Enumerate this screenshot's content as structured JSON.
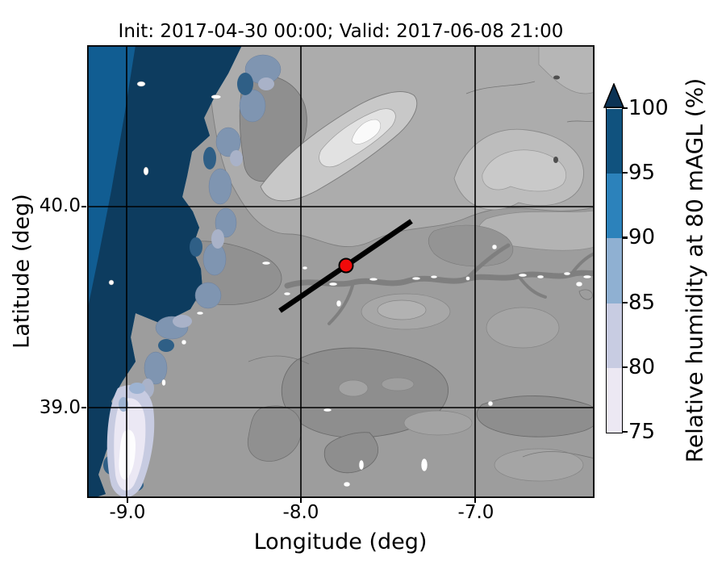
{
  "figure": {
    "title": "Init: 2017-04-30 00:00; Valid: 2017-06-08 21:00"
  },
  "axes": {
    "xlabel": "Longitude (deg)",
    "ylabel": "Latitude (deg)",
    "x_tick_labels": [
      "-9.0",
      "-8.0",
      "-7.0"
    ],
    "y_tick_labels": [
      "40.0",
      "39.0"
    ]
  },
  "colorbar": {
    "label": "Relative humidity at 80 mAGL (%)",
    "ticks": [
      "75",
      "80",
      "85",
      "90",
      "95",
      "100"
    ],
    "segment_colors_bottom_to_top": [
      "#ece8f3",
      "#c8cce2",
      "#8fb0d2",
      "#2c82bb",
      "#10527e"
    ],
    "extend_color": "#0b3355",
    "extend": "max"
  },
  "map_colors": {
    "land_base": "#9d9d9d",
    "ocean_mid": "#115d92",
    "ocean_deep": "#0d3c5f",
    "pale_patch": "#ebe8f4",
    "marker_red": "#f20a0a",
    "line_black": "#000000"
  },
  "chart_data": {
    "type": "heatmap",
    "subtype": "filled-contour-map",
    "title": "Init: 2017-04-30 00:00; Valid: 2017-06-08 21:00",
    "xlabel": "Longitude (deg)",
    "ylabel": "Latitude (deg)",
    "xlim": [
      -9.23,
      -6.33
    ],
    "ylim": [
      38.56,
      40.8
    ],
    "x_ticks": [
      -9.0,
      -8.0,
      -7.0
    ],
    "y_ticks": [
      40.0,
      39.0
    ],
    "grid": true,
    "colorbar_label": "Relative humidity at 80 mAGL (%)",
    "levels_percent": [
      75,
      80,
      85,
      90,
      95,
      100
    ],
    "extend": "max",
    "level_colors": [
      "#ece8f3",
      "#c8cce2",
      "#8fb0d2",
      "#2c82bb",
      "#10527e"
    ],
    "field_summary": "RH 95-100% over Atlantic ocean and west coast; RH 75-90% fringes along coast and a pale 75-80% patch near the southwest estuary; interior land below 75% shown as grayscale terrain with light high ridge in the northeast and dark river valley running east-west",
    "transect_line": {
      "from_lonlat": [
        -8.12,
        39.48
      ],
      "to_lonlat": [
        -7.36,
        39.93
      ],
      "color": "#000000"
    },
    "marker": {
      "lonlat": [
        -7.74,
        39.71
      ],
      "color": "#f20a0a",
      "edge_color": "#000000",
      "shape": "circle"
    }
  }
}
